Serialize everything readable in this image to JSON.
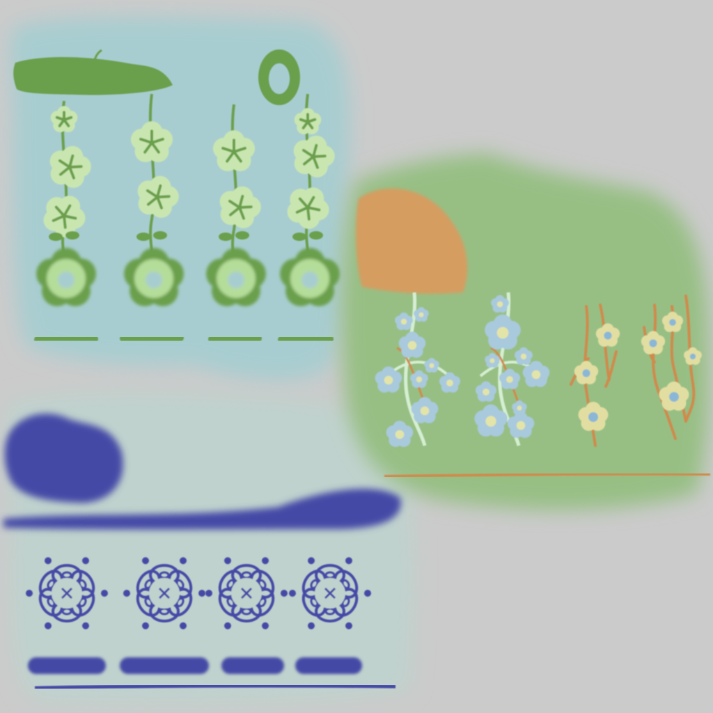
{
  "colors": {
    "background": "#cbcbcb",
    "panel_blue": "#a8cdd0",
    "panel_pale": "#c0d2cd",
    "panel_green": "#97bf84",
    "leaf_green": "#6a9f4c",
    "petal_pale_green": "#c9e6b1",
    "petal_light_green": "#b5dd9a",
    "sky_petal": "#a9c9dd",
    "pale_center": "#e3e4a8",
    "cream_petal": "#e2dea2",
    "stem_light": "#d6efd3",
    "stem_orange": "#d08a4c",
    "sun_orange": "#d59d60",
    "ink_blue": "#4448a6",
    "blossom_center": "#8ab7d6"
  },
  "panels": {
    "top_left": {
      "theme": "hanging green flower vines with leaf-bar headers",
      "vine_count": 4
    },
    "right": {
      "theme": "branches with blue and cream blossoms beside an orange sun",
      "branch_count": 4
    },
    "bottom_left": {
      "theme": "blue folk flower motifs with dashes",
      "motif_count": 4
    }
  }
}
